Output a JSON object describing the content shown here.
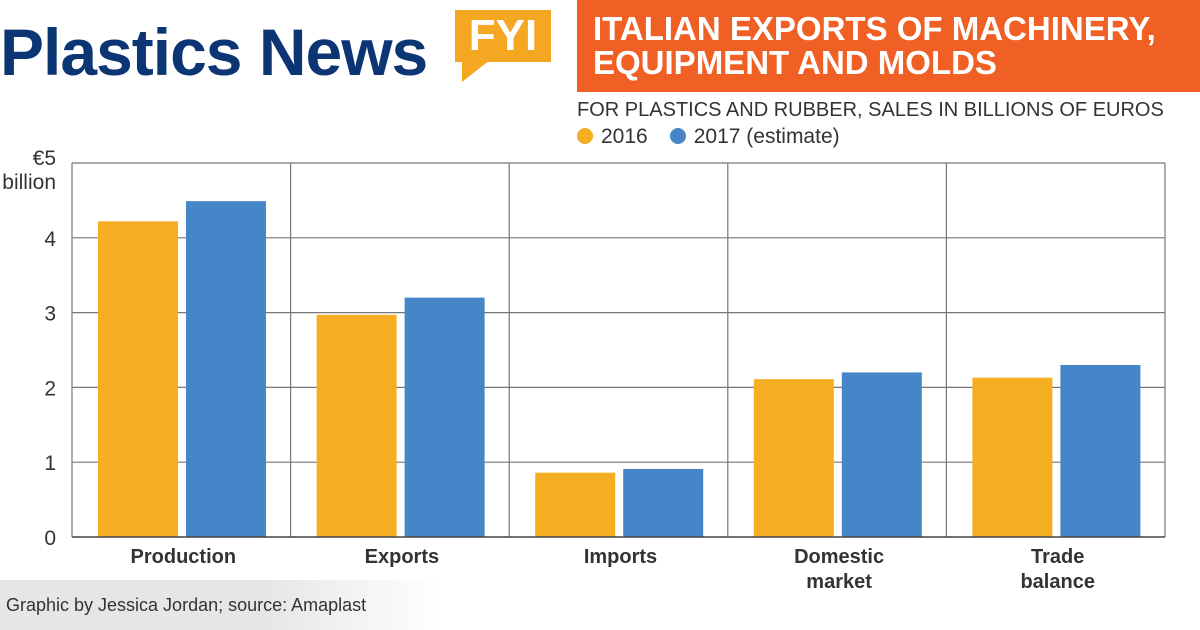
{
  "header": {
    "logo_text": "Plastics News",
    "badge": "FYI",
    "title_line1": "ITALIAN EXPORTS OF MACHINERY,",
    "title_line2": "EQUIPMENT AND MOLDS",
    "subtitle": "FOR PLASTICS AND RUBBER, SALES IN BILLIONS OF EUROS"
  },
  "footer": {
    "credit": "Graphic by Jessica Jordan; source: Amaplast"
  },
  "chart_data": {
    "type": "bar",
    "ylabel_line1": "€5",
    "ylabel_line2": "billion",
    "ylim": [
      0,
      5
    ],
    "yticks": [
      "0",
      "1",
      "2",
      "3",
      "4"
    ],
    "categories": [
      [
        "Production"
      ],
      [
        "Exports"
      ],
      [
        "Imports"
      ],
      [
        "Domestic",
        "market"
      ],
      [
        "Trade",
        "balance"
      ]
    ],
    "series": [
      {
        "name": "2016",
        "color": "#f5ad22",
        "values": [
          4.22,
          2.97,
          0.86,
          2.11,
          2.13
        ]
      },
      {
        "name": "2017 (estimate)",
        "color": "#4686c8",
        "values": [
          4.49,
          3.2,
          0.91,
          2.2,
          2.3
        ]
      }
    ],
    "grid": true,
    "legend": "top-right"
  }
}
